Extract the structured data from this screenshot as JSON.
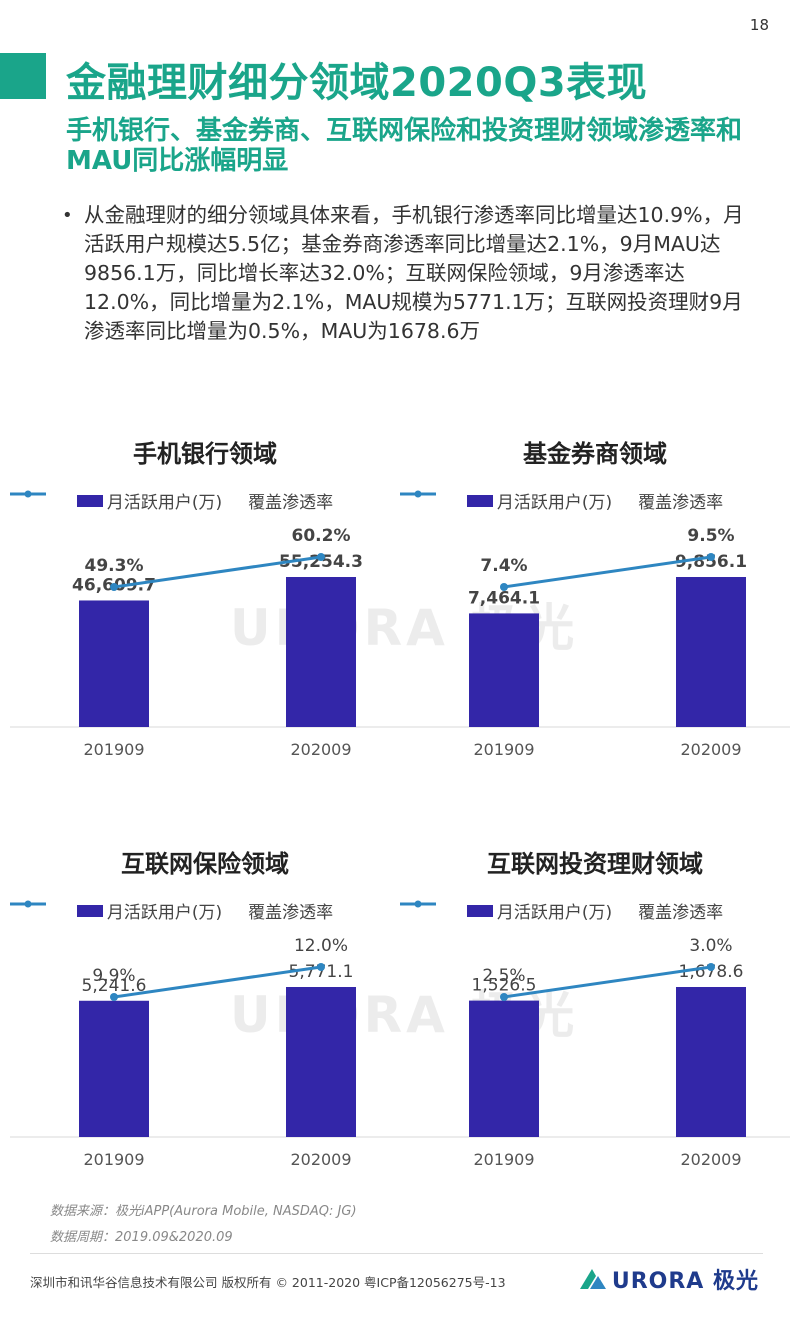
{
  "page_number": "18",
  "title": "金融理财细分领域2020Q3表现",
  "subtitle": "手机银行、基金券商、互联网保险和投资理财领域渗透率和MAU同比涨幅明显",
  "bullet": "从金融理财的细分领域具体来看，手机银行渗透率同比增量达10.9%，月活跃用户规模达5.5亿；基金券商渗透率同比增量达2.1%，9月MAU达9856.1万，同比增长率达32.0%；互联网保险领域，9月渗透率达12.0%，同比增量为2.1%，MAU规模为5771.1万；互联网投资理财9月渗透率同比增量为0.5%，MAU为1678.6万",
  "legend": {
    "bar": "月活跃用户(万)",
    "line": "覆盖渗透率"
  },
  "colors": {
    "accent": "#1aa58a",
    "bar": "#3326a8",
    "line": "#2e86c1"
  },
  "chart_data": [
    {
      "type": "bar+line",
      "title": "手机银行领域",
      "categories": [
        "201909",
        "202009"
      ],
      "series": [
        {
          "name": "月活跃用户(万)",
          "type": "bar",
          "values": [
            46609.7,
            55254.3
          ],
          "labels": [
            "46,609.7",
            "55,254.3"
          ]
        },
        {
          "name": "覆盖渗透率",
          "type": "line",
          "values": [
            49.3,
            60.2
          ],
          "labels": [
            "49.3%",
            "60.2%"
          ]
        }
      ],
      "bold_labels": true
    },
    {
      "type": "bar+line",
      "title": "基金券商领域",
      "categories": [
        "201909",
        "202009"
      ],
      "series": [
        {
          "name": "月活跃用户(万)",
          "type": "bar",
          "values": [
            7464.1,
            9856.1
          ],
          "labels": [
            "7,464.1",
            "9,856.1"
          ]
        },
        {
          "name": "覆盖渗透率",
          "type": "line",
          "values": [
            7.4,
            9.5
          ],
          "labels": [
            "7.4%",
            "9.5%"
          ]
        }
      ],
      "bold_labels": true
    },
    {
      "type": "bar+line",
      "title": "互联网保险领域",
      "categories": [
        "201909",
        "202009"
      ],
      "series": [
        {
          "name": "月活跃用户(万)",
          "type": "bar",
          "values": [
            5241.6,
            5771.1
          ],
          "labels": [
            "5,241.6",
            "5,771.1"
          ]
        },
        {
          "name": "覆盖渗透率",
          "type": "line",
          "values": [
            9.9,
            12.0
          ],
          "labels": [
            "9.9%",
            "12.0%"
          ]
        }
      ],
      "bold_labels": false
    },
    {
      "type": "bar+line",
      "title": "互联网投资理财领域",
      "categories": [
        "201909",
        "202009"
      ],
      "series": [
        {
          "name": "月活跃用户(万)",
          "type": "bar",
          "values": [
            1526.5,
            1678.6
          ],
          "labels": [
            "1,526.5",
            "1,678.6"
          ]
        },
        {
          "name": "覆盖渗透率",
          "type": "line",
          "values": [
            2.5,
            3.0
          ],
          "labels": [
            "2.5%",
            "3.0%"
          ]
        }
      ],
      "bold_labels": false
    }
  ],
  "watermark": "URORA 极光",
  "source": "数据来源：极光iAPP(Aurora Mobile, NASDAQ: JG)",
  "period": "数据周期：2019.09&2020.09",
  "footer": "深圳市和讯华谷信息技术有限公司 版权所有 © 2011-2020 粤ICP备12056275号-13",
  "footer_logo": "URORA 极光"
}
